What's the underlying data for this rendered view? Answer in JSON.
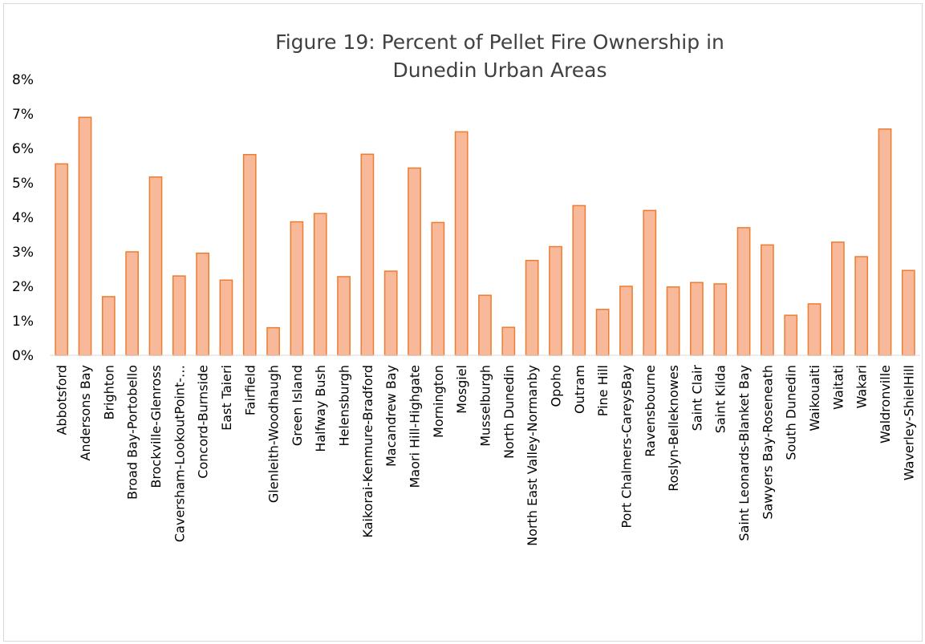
{
  "chart_data": {
    "type": "bar",
    "title_line1": "Figure 19: Percent of Pellet Fire Ownership in",
    "title_line2": "Dunedin Urban Areas",
    "xlabel": "",
    "ylabel": "",
    "ylim": [
      0,
      0.08
    ],
    "yticks": [
      0,
      0.01,
      0.02,
      0.03,
      0.04,
      0.05,
      0.06,
      0.07,
      0.08
    ],
    "ytick_labels": [
      "0%",
      "1%",
      "2%",
      "3%",
      "4%",
      "5%",
      "6%",
      "7%",
      "8%"
    ],
    "grid": false,
    "legend": false,
    "bar_fill": "#f7b999",
    "bar_stroke": "#ed7d31",
    "categories": [
      "Abbotsford",
      "Andersons Bay",
      "Brighton",
      "Broad Bay-Portobello",
      "Brockville-Glenross",
      "Caversham-LookoutPoint-…",
      "Concord-Burnside",
      "East Taieri",
      "Fairfield",
      "Glenleith-Woodhaugh",
      "Green Island",
      "Halfway Bush",
      "Helensburgh",
      "Kaikorai-Kenmure-Bradford",
      "Macandrew Bay",
      "Maori Hill-Highgate",
      "Mornington",
      "Mosgiel",
      "Musselburgh",
      "North Dunedin",
      "North East Valley-Normanby",
      "Opoho",
      "Outram",
      "Pine Hill",
      "Port Chalmers-CareysBay",
      "Ravensbourne",
      "Roslyn-Belleknowes",
      "Saint Clair",
      "Saint Kilda",
      "Saint Leonards-Blanket Bay",
      "Sawyers Bay-Roseneath",
      "South Dunedin",
      "Waikouaiti",
      "Waitati",
      "Wakari",
      "Waldronville",
      "Waverley-ShielHill"
    ],
    "values": [
      0.0555,
      0.069,
      0.017,
      0.03,
      0.0517,
      0.023,
      0.0296,
      0.0218,
      0.0582,
      0.008,
      0.0387,
      0.0411,
      0.0228,
      0.0583,
      0.0244,
      0.0543,
      0.0385,
      0.0648,
      0.0174,
      0.0081,
      0.0275,
      0.0315,
      0.0434,
      0.0133,
      0.02,
      0.042,
      0.0198,
      0.0211,
      0.0207,
      0.037,
      0.032,
      0.0116,
      0.0149,
      0.0328,
      0.0286,
      0.0656,
      0.0246
    ]
  }
}
